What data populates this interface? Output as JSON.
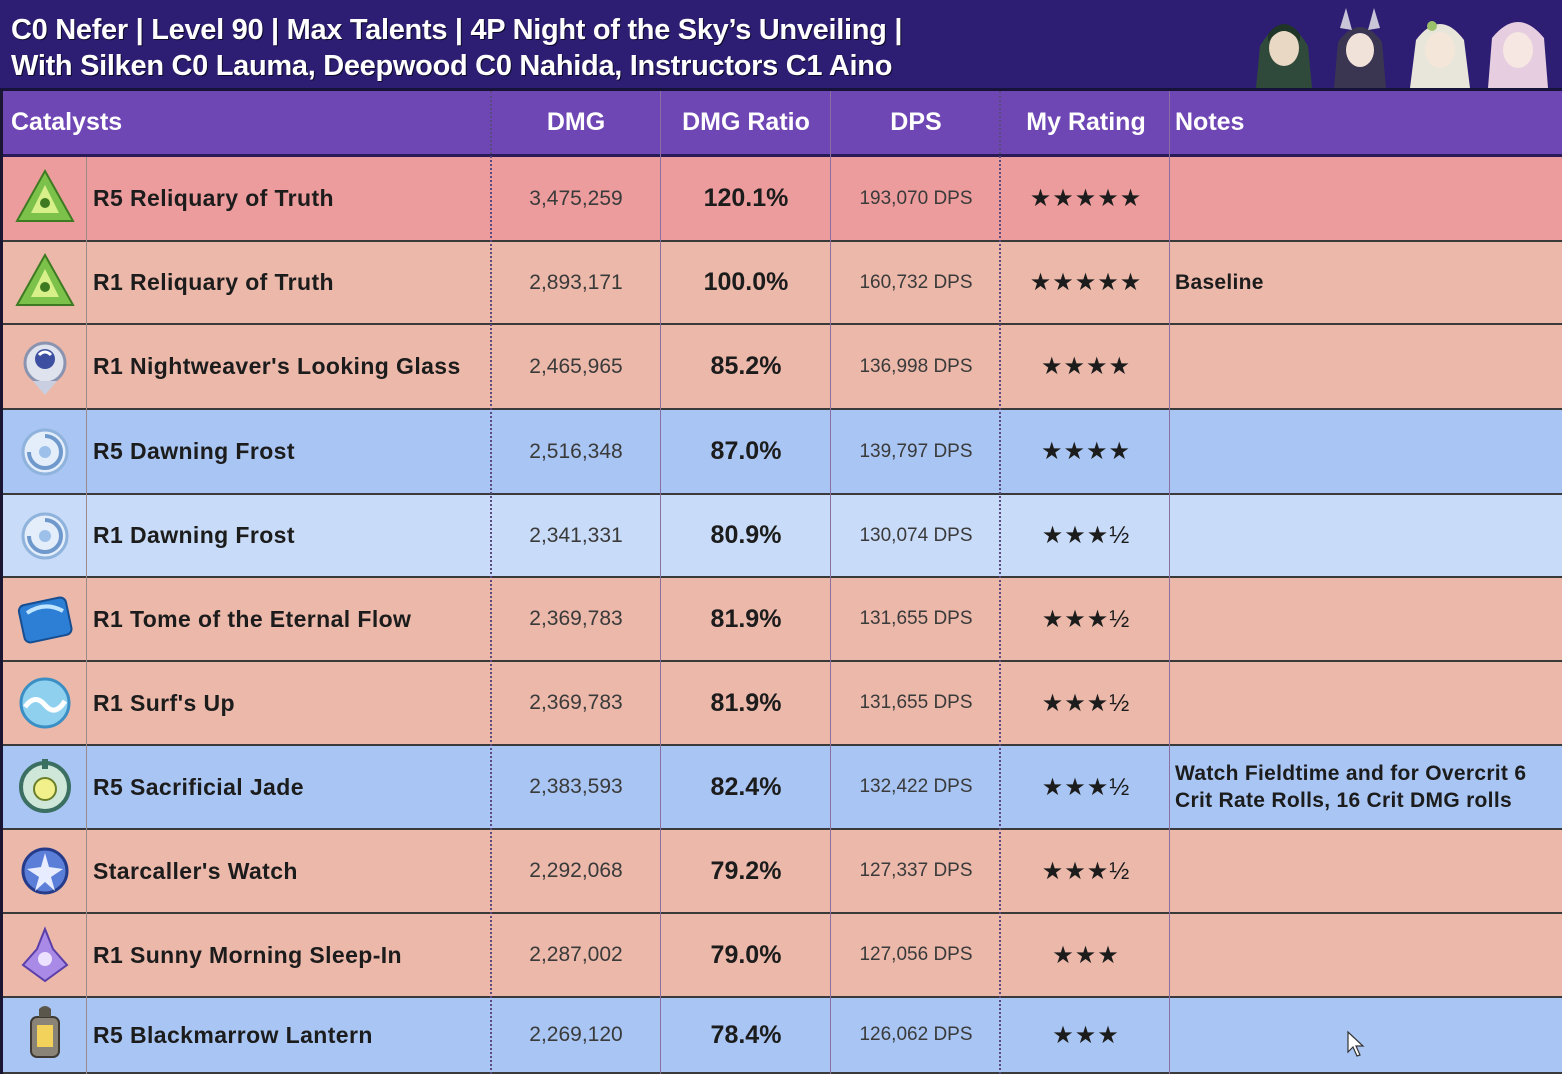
{
  "title": {
    "line1": "C0 Nefer | Level 90 | Max Talents | 4P Night of the Sky’s Unveiling |",
    "line2": "With Silken C0 Lauma, Deepwood C0 Nahida, Instructors C1 Aino"
  },
  "header": {
    "catalysts": "Catalysts",
    "dmg": "DMG",
    "ratio": "DMG Ratio",
    "dps": "DPS",
    "rating": "My Rating",
    "notes": "Notes"
  },
  "colors": {
    "title_bg": "#2e1e73",
    "header_bg": "#6f47b5",
    "red_top": "#ec9c9c",
    "red": "#ebb8aa",
    "blue": "#a8c5f3",
    "blue_light": "#c8dbf8"
  },
  "rows": [
    {
      "icon": "green-triangle-icon",
      "name": "R5 Reliquary of Truth",
      "dmg": "3,475,259",
      "ratio": "120.1%",
      "dps": "193,070 DPS",
      "rating": "★★★★★",
      "notes": "",
      "bg": "#ec9c9c"
    },
    {
      "icon": "green-triangle-icon",
      "name": "R1 Reliquary of Truth",
      "dmg": "2,893,171",
      "ratio": "100.0%",
      "dps": "160,732 DPS",
      "rating": "★★★★★",
      "notes": "Baseline",
      "bg": "#ebb8aa"
    },
    {
      "icon": "looking-glass-icon",
      "name": "R1 Nightweaver's Looking Glass",
      "dmg": "2,465,965",
      "ratio": "85.2%",
      "dps": "136,998 DPS",
      "rating": "★★★★",
      "notes": "",
      "bg": "#ebb8aa"
    },
    {
      "icon": "frost-swirl-icon",
      "name": "R5 Dawning Frost",
      "dmg": "2,516,348",
      "ratio": "87.0%",
      "dps": "139,797 DPS",
      "rating": "★★★★",
      "notes": "",
      "bg": "#a8c5f3"
    },
    {
      "icon": "frost-swirl-icon",
      "name": "R1 Dawning Frost",
      "dmg": "2,341,331",
      "ratio": "80.9%",
      "dps": "130,074 DPS",
      "rating": "★★★½",
      "notes": "",
      "bg": "#c8dbf8"
    },
    {
      "icon": "blue-tome-icon",
      "name": "R1 Tome of the Eternal Flow",
      "dmg": "2,369,783",
      "ratio": "81.9%",
      "dps": "131,655 DPS",
      "rating": "★★★½",
      "notes": "",
      "bg": "#ebb8aa"
    },
    {
      "icon": "wave-orb-icon",
      "name": "R1 Surf's Up",
      "dmg": "2,369,783",
      "ratio": "81.9%",
      "dps": "131,655 DPS",
      "rating": "★★★½",
      "notes": "",
      "bg": "#ebb8aa"
    },
    {
      "icon": "jade-orb-icon",
      "name": "R5 Sacrificial Jade",
      "dmg": "2,383,593",
      "ratio": "82.4%",
      "dps": "132,422 DPS",
      "rating": "★★★½",
      "notes": "Watch Fieldtime and for Overcrit 6 Crit Rate Rolls, 16 Crit DMG rolls",
      "bg": "#a8c5f3"
    },
    {
      "icon": "star-watch-icon",
      "name": "Starcaller's Watch",
      "dmg": "2,292,068",
      "ratio": "79.2%",
      "dps": "127,337 DPS",
      "rating": "★★★½",
      "notes": "",
      "bg": "#ebb8aa"
    },
    {
      "icon": "purple-bell-icon",
      "name": "R1 Sunny Morning Sleep-In",
      "dmg": "2,287,002",
      "ratio": "79.0%",
      "dps": "127,056 DPS",
      "rating": "★★★",
      "notes": "",
      "bg": "#ebb8aa"
    },
    {
      "icon": "lantern-icon",
      "name": "R5 Blackmarrow Lantern",
      "dmg": "2,269,120",
      "ratio": "78.4%",
      "dps": "126,062 DPS",
      "rating": "★★★",
      "notes": "",
      "bg": "#a8c5f3"
    }
  ]
}
